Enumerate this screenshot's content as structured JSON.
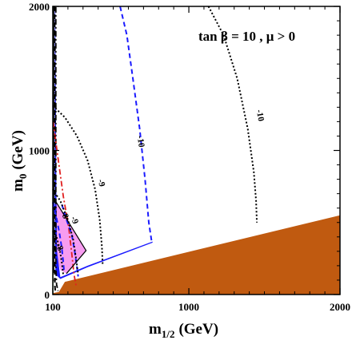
{
  "chart_data": {
    "type": "contour",
    "xlabel_base": "m",
    "xlabel_sub": "1/2",
    "xlabel_unit": "(GeV)",
    "ylabel_base": "m",
    "ylabel_sub": "0",
    "ylabel_unit": "(GeV)",
    "xlim": [
      100,
      2000
    ],
    "ylim": [
      0,
      2000
    ],
    "x_ticks": [
      100,
      1000,
      2000
    ],
    "x_tick_labels": [
      "100",
      "1000",
      "2000"
    ],
    "y_ticks": [
      0,
      1000,
      2000
    ],
    "y_tick_labels": [
      "0",
      "1000",
      "2000"
    ],
    "annotation": "tan β = 10 ,  μ > 0",
    "colors": {
      "brown_region": "#c05a10",
      "pink_region": "#f79cf0",
      "green_strip": "#2e8b2e",
      "blue": "#1a1aff",
      "black": "#000000",
      "red": "#e02020"
    },
    "regions": [
      {
        "id": "charged-lsp-region",
        "color": "#c05a10",
        "points": [
          [
            100,
            0
          ],
          [
            2000,
            0
          ],
          [
            2000,
            550
          ],
          [
            180,
            88
          ],
          [
            140,
            18
          ],
          [
            100,
            10
          ]
        ]
      },
      {
        "id": "g-2-region",
        "color": "#f79cf0",
        "points": [
          [
            120,
            645
          ],
          [
            320,
            305
          ],
          [
            190,
            145
          ],
          [
            150,
            170
          ],
          [
            125,
            260
          ],
          [
            120,
            400
          ]
        ]
      },
      {
        "id": "wmap-strip",
        "color": "#1a1aff",
        "points": [
          [
            113,
            2000
          ],
          [
            117,
            2000
          ],
          [
            124,
            700
          ],
          [
            128,
            300
          ],
          [
            150,
            120
          ],
          [
            330,
            200
          ],
          [
            760,
            368
          ],
          [
            760,
            360
          ],
          [
            330,
            190
          ],
          [
            150,
            108
          ],
          [
            118,
            140
          ],
          [
            114,
            300
          ],
          [
            112,
            700
          ]
        ]
      },
      {
        "id": "lep-chargino-strip",
        "color": "#2e8b2e",
        "points": [
          [
            100,
            0
          ],
          [
            104,
            0
          ],
          [
            104,
            2000
          ],
          [
            100,
            2000
          ]
        ]
      }
    ],
    "curves": [
      {
        "id": "higgs-114-contour",
        "color": "#000000",
        "style": "dashdot",
        "points": [
          [
            120,
            1995
          ],
          [
            120,
            200
          ],
          [
            125,
            70
          ],
          [
            135,
            25
          ]
        ]
      },
      {
        "id": "chargino-104-contour",
        "color": "#000000",
        "style": "dashed",
        "points": [
          [
            112,
            2000
          ],
          [
            112,
            200
          ],
          [
            114,
            60
          ],
          [
            118,
            10
          ]
        ]
      },
      {
        "id": "edge-black-line",
        "color": "#000000",
        "style": "solid",
        "points": [
          [
            107,
            2000
          ],
          [
            107,
            150
          ]
        ]
      },
      {
        "id": "bsg-contour",
        "color": "#e02020",
        "style": "dashdot",
        "points": [
          [
            102,
            1200
          ],
          [
            130,
            980
          ],
          [
            170,
            680
          ],
          [
            205,
            470
          ],
          [
            225,
            290
          ],
          [
            240,
            140
          ],
          [
            255,
            55
          ]
        ]
      },
      {
        "id": "blue-contour-10",
        "color": "#1a1aff",
        "style": "dashed",
        "points": [
          [
            545,
            2000
          ],
          [
            590,
            1800
          ],
          [
            630,
            1500
          ],
          [
            675,
            1150
          ],
          [
            710,
            800
          ],
          [
            735,
            500
          ],
          [
            755,
            360
          ]
        ]
      },
      {
        "id": "blue-contour-9",
        "color": "#1a1aff",
        "style": "dashed",
        "points": [
          [
            160,
            625
          ],
          [
            190,
            520
          ],
          [
            225,
            420
          ],
          [
            245,
            300
          ],
          [
            258,
            200
          ],
          [
            268,
            125
          ]
        ]
      },
      {
        "id": "blue-contour-8",
        "color": "#1a1aff",
        "style": "dashed",
        "points": [
          [
            100,
            640
          ],
          [
            125,
            530
          ],
          [
            145,
            420
          ],
          [
            160,
            320
          ],
          [
            170,
            220
          ],
          [
            175,
            150
          ]
        ]
      },
      {
        "id": "black-contour-10",
        "color": "#000000",
        "style": "dotted",
        "points": [
          [
            1130,
            2000
          ],
          [
            1230,
            1800
          ],
          [
            1320,
            1500
          ],
          [
            1390,
            1150
          ],
          [
            1430,
            850
          ],
          [
            1445,
            650
          ],
          [
            1450,
            500
          ]
        ]
      },
      {
        "id": "black-contour-9",
        "color": "#000000",
        "style": "dotted",
        "points": [
          [
            100,
            1310
          ],
          [
            180,
            1230
          ],
          [
            260,
            1100
          ],
          [
            330,
            930
          ],
          [
            380,
            730
          ],
          [
            410,
            520
          ],
          [
            425,
            330
          ],
          [
            430,
            200
          ]
        ]
      },
      {
        "id": "black-contour-8",
        "color": "#000000",
        "style": "dotted",
        "points": [
          [
            100,
            730
          ],
          [
            150,
            650
          ],
          [
            200,
            520
          ],
          [
            235,
            380
          ],
          [
            255,
            240
          ],
          [
            268,
            140
          ]
        ]
      },
      {
        "id": "black-contour-7",
        "color": "#000000",
        "style": "dotted",
        "points": [
          [
            100,
            440
          ],
          [
            125,
            400
          ],
          [
            145,
            320
          ],
          [
            160,
            220
          ],
          [
            170,
            130
          ]
        ]
      },
      {
        "id": "g-2-bound-line",
        "color": "#000000",
        "style": "solid",
        "points": [
          [
            120,
            645
          ],
          [
            320,
            305
          ],
          [
            190,
            145
          ]
        ]
      }
    ],
    "contour_labels": [
      {
        "text": "-10",
        "x": 1455,
        "y": 1240,
        "rotation": 80
      },
      {
        "text": "-10",
        "x": 665,
        "y": 1060,
        "rotation": 82
      },
      {
        "text": "-9",
        "x": 405,
        "y": 770,
        "rotation": 75
      },
      {
        "text": "-9",
        "x": 228,
        "y": 510,
        "rotation": 70
      },
      {
        "text": "-8",
        "x": 163,
        "y": 545,
        "rotation": 65
      },
      {
        "text": "-8",
        "x": 128,
        "y": 320,
        "rotation": 60
      }
    ]
  }
}
